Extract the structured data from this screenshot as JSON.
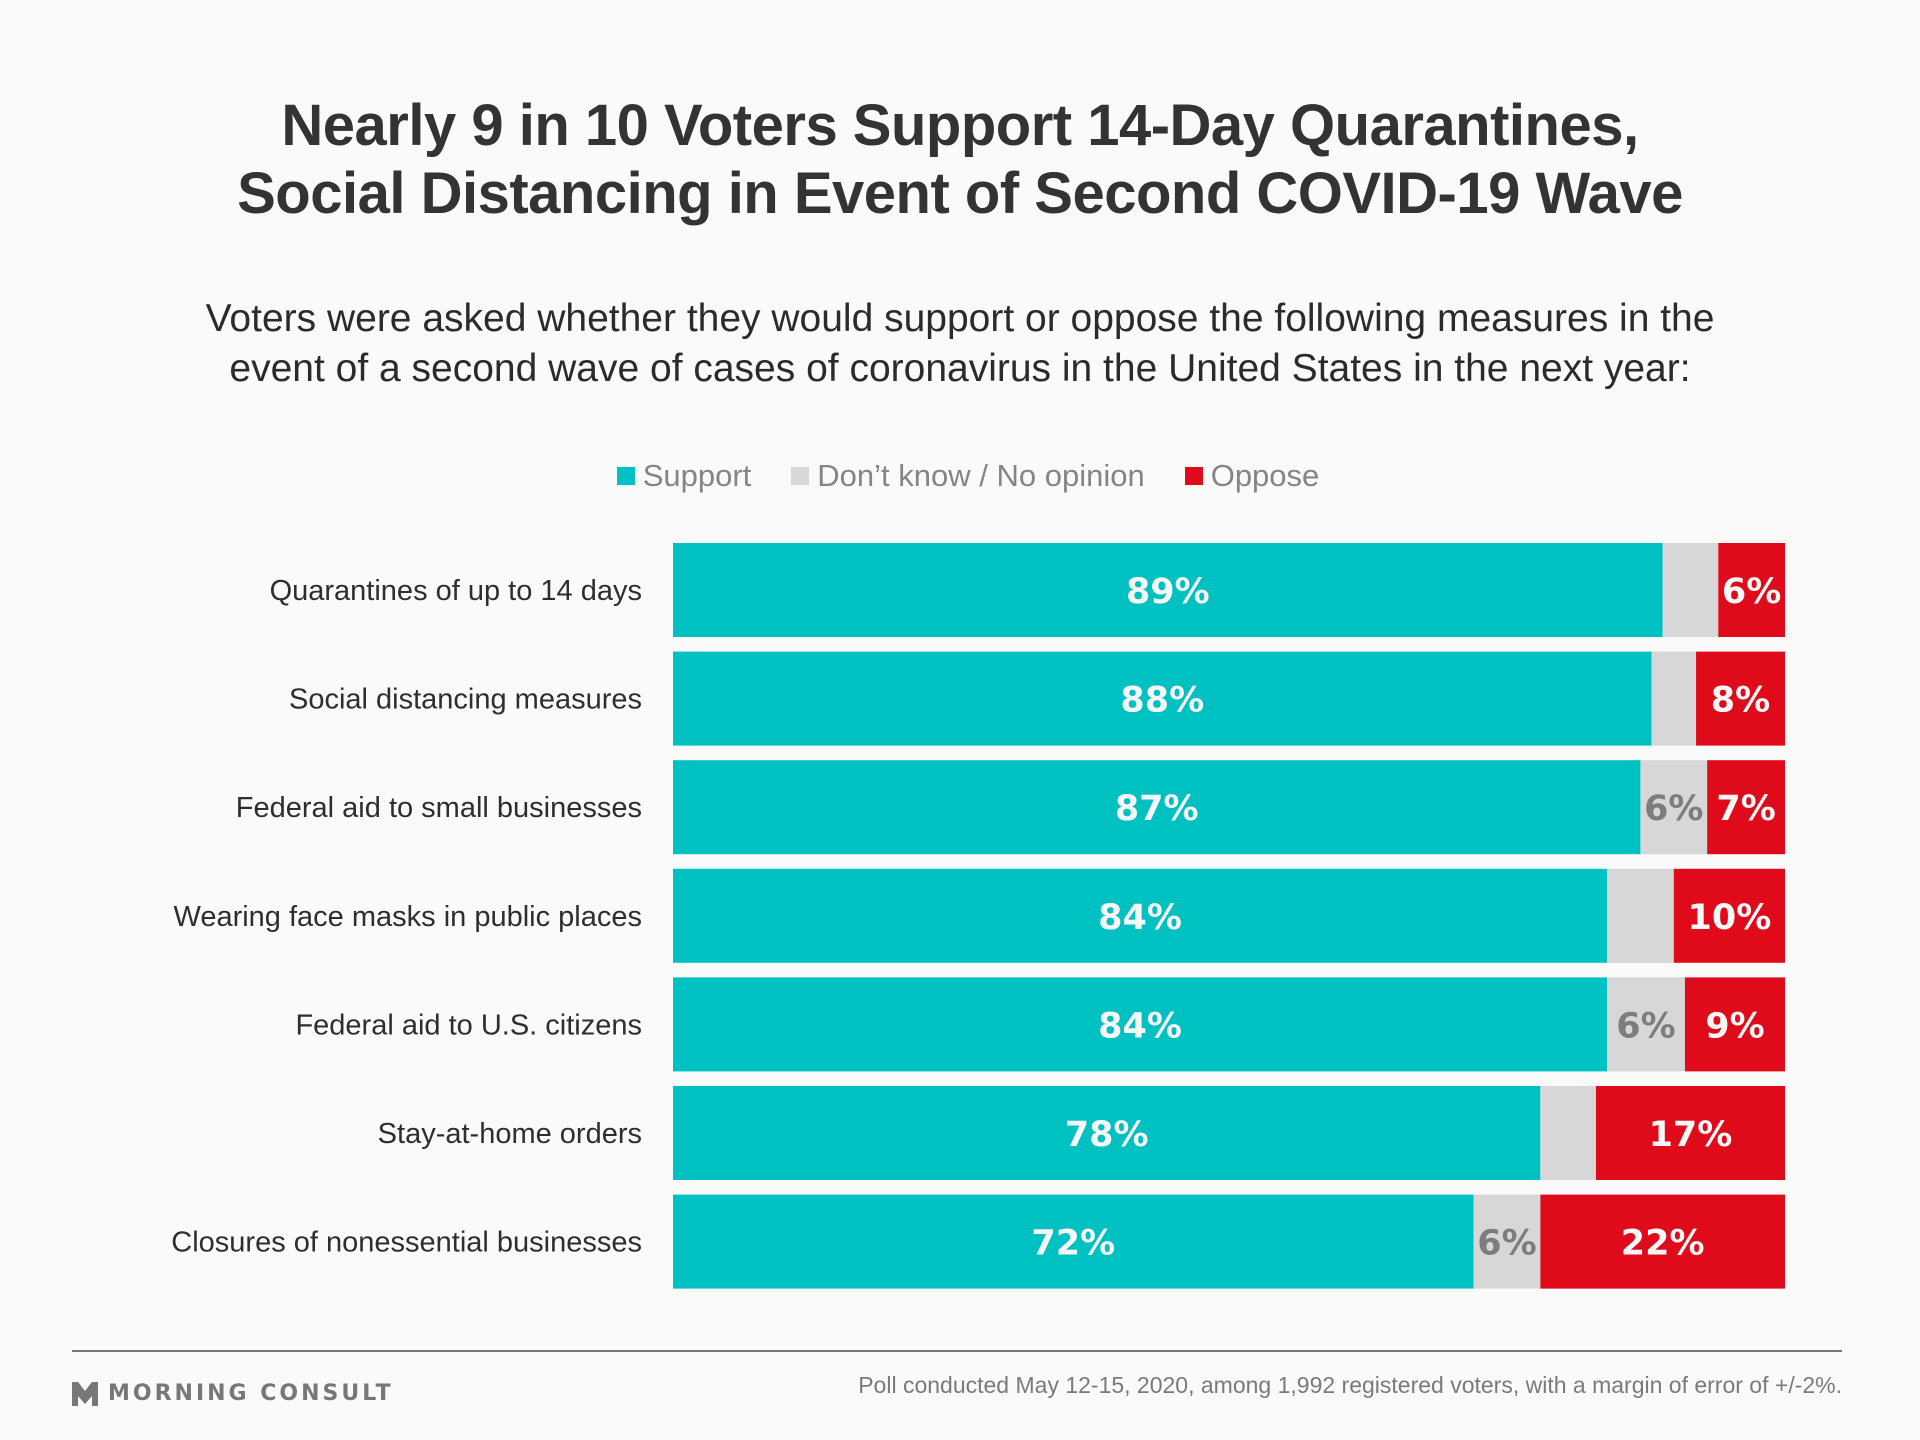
{
  "header": {
    "title_line1": "Nearly 9 in 10 Voters Support 14-Day Quarantines,",
    "title_line2": "Social Distancing in Event of Second COVID-19 Wave",
    "subtitle_line1": "Voters were asked whether they would support or oppose the following measures in the",
    "subtitle_line2": "event of a second wave of cases of coronavirus in the United States in the next year:"
  },
  "legend": [
    {
      "label": "Support",
      "color": "#00c1c2"
    },
    {
      "label": "Don’t know / No opinion",
      "color": "#d7d7d7"
    },
    {
      "label": "Oppose",
      "color": "#e00b1a"
    }
  ],
  "colors": {
    "support": "#00c1c2",
    "dont_know": "#d7d7d7",
    "oppose": "#e00b1a",
    "label_light": "#f7f7f7",
    "label_dk": "#7d7d7d"
  },
  "chart_data": {
    "type": "bar",
    "orientation": "horizontal",
    "stacked": true,
    "title": "Nearly 9 in 10 Voters Support 14-Day Quarantines, Social Distancing in Event of Second COVID-19 Wave",
    "xlabel": "",
    "ylabel": "",
    "xlim": [
      0,
      100
    ],
    "grid": false,
    "legend_position": "top-center",
    "categories": [
      "Quarantines of up to 14 days",
      "Social distancing measures",
      "Federal aid to small businesses",
      "Wearing face masks in public places",
      "Federal aid to U.S. citizens",
      "Stay-at-home orders",
      "Closures of nonessential businesses"
    ],
    "series": [
      {
        "name": "Support",
        "values": [
          89,
          88,
          87,
          84,
          84,
          78,
          72
        ],
        "labels": [
          "89%",
          "88%",
          "87%",
          "84%",
          "84%",
          "78%",
          "72%"
        ]
      },
      {
        "name": "Don’t know / No opinion",
        "values": [
          5,
          5,
          6,
          5,
          6,
          5,
          6
        ],
        "labels": [
          "",
          "",
          "6%",
          "",
          "6%",
          "",
          "6%"
        ]
      },
      {
        "name": "Oppose",
        "values": [
          6,
          8,
          7,
          10,
          9,
          17,
          22
        ],
        "labels": [
          "6%",
          "8%",
          "7%",
          "10%",
          "9%",
          "17%",
          "22%"
        ]
      }
    ]
  },
  "footer": {
    "brand": "MORNING CONSULT",
    "note": "Poll conducted May 12-15, 2020, among 1,992 registered voters, with a margin of error of +/-2%."
  }
}
